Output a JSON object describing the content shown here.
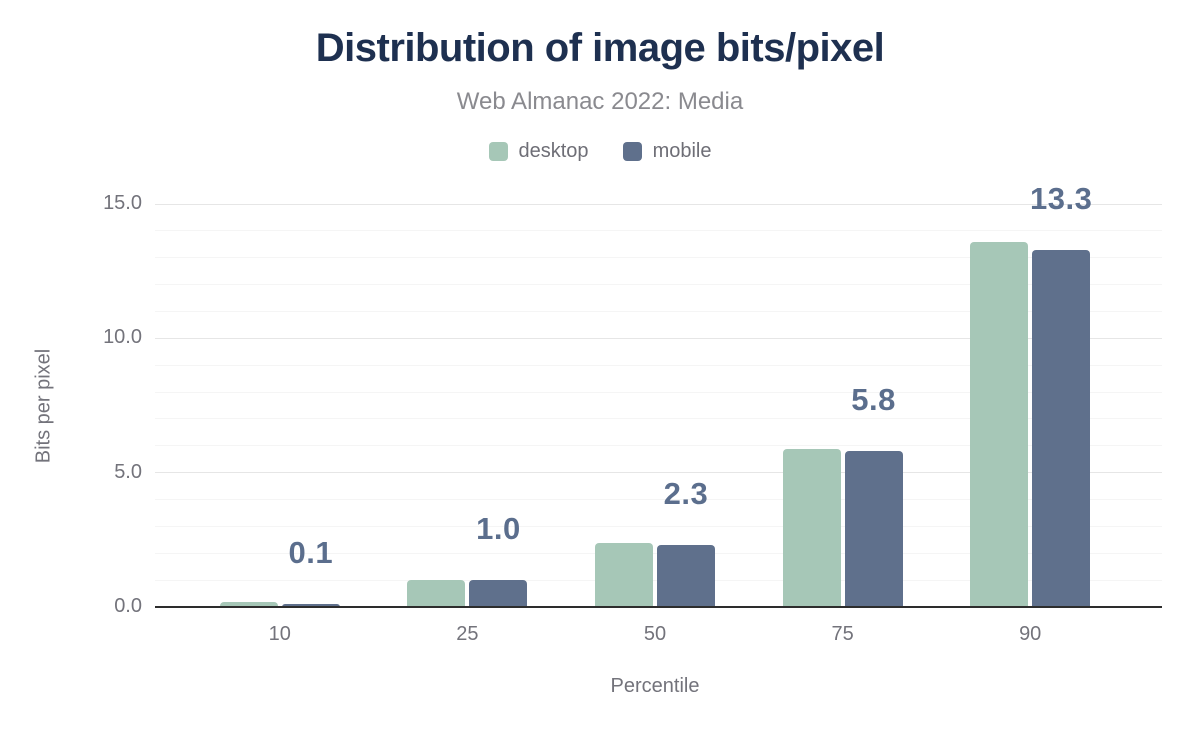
{
  "header": {
    "title": "Distribution of image bits/pixel",
    "subtitle": "Web Almanac 2022: Media"
  },
  "legend": [
    {
      "label": "desktop",
      "color": "#a6c7b7"
    },
    {
      "label": "mobile",
      "color": "#5f708c"
    }
  ],
  "chart_data": {
    "type": "bar",
    "title": "Distribution of image bits/pixel",
    "subtitle": "Web Almanac 2022: Media",
    "categories": [
      "10",
      "25",
      "50",
      "75",
      "90"
    ],
    "series": [
      {
        "name": "desktop",
        "color": "#a6c7b7",
        "values": [
          0.2,
          1.0,
          2.4,
          5.9,
          13.6
        ]
      },
      {
        "name": "mobile",
        "color": "#5f708c",
        "values": [
          0.1,
          1.0,
          2.3,
          5.8,
          13.3
        ]
      }
    ],
    "data_labels": [
      "0.1",
      "1.0",
      "2.3",
      "5.8",
      "13.3"
    ],
    "data_labels_series": "mobile",
    "xlabel": "Percentile",
    "ylabel": "Bits per pixel",
    "ylim": [
      0,
      15
    ],
    "yticks": [
      {
        "value": 0,
        "label": "0.0"
      },
      {
        "value": 5,
        "label": "5.0"
      },
      {
        "value": 10,
        "label": "10.0"
      },
      {
        "value": 15,
        "label": "15.0"
      }
    ],
    "minor_grid_step": 1,
    "grid": true,
    "legend_position": "top"
  },
  "colors": {
    "title": "#1e3050",
    "subtitle_text": "#8a8a8f",
    "axis_text": "#73737b",
    "legend_text": "#6e6e76",
    "data_label": "#5b6e8d",
    "desktop_green": "#a6c7b7",
    "mobile_slate": "#5f708c",
    "axis_line": "#2d2d2d",
    "grid_major": "#e6e6e6",
    "grid_minor": "#f5f5f5",
    "background": "#ffffff"
  }
}
